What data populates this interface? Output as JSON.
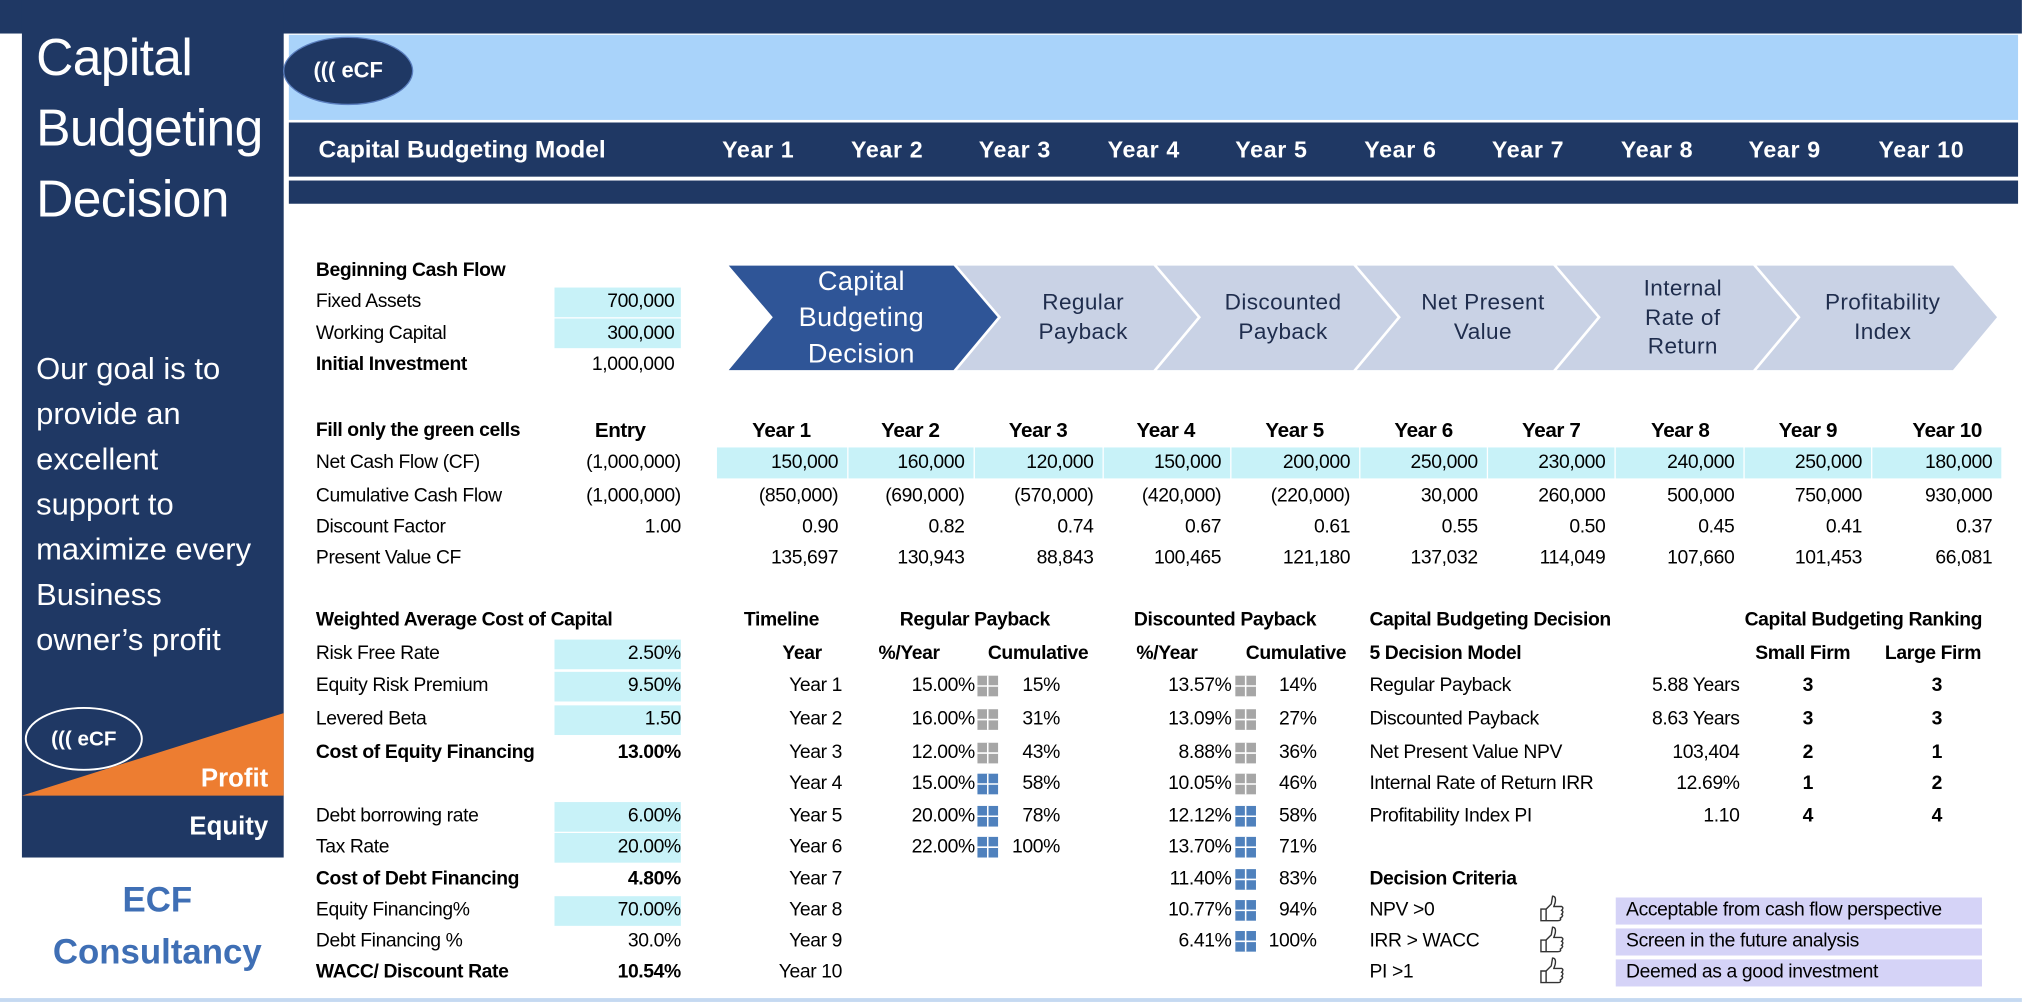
{
  "sidebar": {
    "title_lines": [
      "Capital",
      "Budgeting",
      "Decision"
    ],
    "goal_lines": [
      "Our goal is to",
      "provide an",
      "excellent",
      "support to",
      "maximize every",
      "Business",
      "owner’s profit"
    ],
    "logo": "((( eCF",
    "profit": "Profit",
    "equity": "Equity",
    "company_lines": [
      "ECF",
      "Consultancy"
    ]
  },
  "header": {
    "logo": "((( eCF",
    "model_title": "Capital Budgeting Model",
    "years": [
      "Year 1",
      "Year 2",
      "Year 3",
      "Year 4",
      "Year 5",
      "Year 6",
      "Year 7",
      "Year 8",
      "Year 9",
      "Year 10"
    ]
  },
  "beginning_cash_flow": {
    "title": "Beginning Cash Flow",
    "rows": [
      {
        "label": "Fixed Assets",
        "value": "700,000"
      },
      {
        "label": "Working Capital",
        "value": "300,000"
      },
      {
        "label": "Initial Investment",
        "value": "1,000,000"
      }
    ]
  },
  "process_steps": [
    {
      "lines": [
        "Capital",
        "Budgeting",
        "Decision"
      ]
    },
    {
      "lines": [
        "Regular",
        "Payback"
      ]
    },
    {
      "lines": [
        "Discounted",
        "Payback"
      ]
    },
    {
      "lines": [
        "Net Present",
        "Value"
      ]
    },
    {
      "lines": [
        "Internal",
        "Rate of",
        "Return"
      ]
    },
    {
      "lines": [
        "Profitability",
        "Index"
      ]
    }
  ],
  "cash_flow_table": {
    "instruction": "Fill only the green cells",
    "entry_header": "Entry",
    "years": [
      "Year 1",
      "Year 2",
      "Year 3",
      "Year 4",
      "Year 5",
      "Year 6",
      "Year 7",
      "Year 8",
      "Year 9",
      "Year 10"
    ],
    "rows": [
      {
        "label": "Net Cash Flow (CF)",
        "entry": "(1,000,000)",
        "values": [
          "150,000",
          "160,000",
          "120,000",
          "150,000",
          "200,000",
          "250,000",
          "230,000",
          "240,000",
          "250,000",
          "180,000"
        ]
      },
      {
        "label": "Cumulative Cash Flow",
        "entry": "(1,000,000)",
        "values": [
          "(850,000)",
          "(690,000)",
          "(570,000)",
          "(420,000)",
          "(220,000)",
          "30,000",
          "260,000",
          "500,000",
          "750,000",
          "930,000"
        ]
      },
      {
        "label": "Discount Factor",
        "entry": "1.00",
        "values": [
          "0.90",
          "0.82",
          "0.74",
          "0.67",
          "0.61",
          "0.55",
          "0.50",
          "0.45",
          "0.41",
          "0.37"
        ]
      },
      {
        "label": "Present Value CF",
        "values": [
          "135,697",
          "130,943",
          "88,843",
          "100,465",
          "121,180",
          "137,032",
          "114,049",
          "107,660",
          "101,453",
          "66,081"
        ]
      }
    ]
  },
  "wacc": {
    "title": "Weighted Average Cost of Capital",
    "rows": [
      {
        "label": "Risk Free Rate",
        "value": "2.50%"
      },
      {
        "label": "Equity Risk Premium",
        "value": "9.50%"
      },
      {
        "label": "Levered Beta",
        "value": "1.50"
      },
      {
        "label": "Cost of Equity Financing",
        "value": "13.00%"
      },
      {
        "label": "Debt borrowing rate",
        "value": "6.00%"
      },
      {
        "label": "Tax Rate",
        "value": "20.00%"
      },
      {
        "label": "Cost of Debt Financing",
        "value": "4.80%"
      },
      {
        "label": "Equity Financing%",
        "value": "70.00%"
      },
      {
        "label": "Debt Financing %",
        "value": "30.0%"
      },
      {
        "label": "WACC/ Discount Rate",
        "value": "10.54%"
      }
    ]
  },
  "timeline": {
    "title": "Timeline",
    "header": "Year",
    "years": [
      "Year 1",
      "Year 2",
      "Year 3",
      "Year 4",
      "Year 5",
      "Year 6",
      "Year 7",
      "Year 8",
      "Year 9",
      "Year 10"
    ]
  },
  "regular_payback": {
    "title": "Regular Payback",
    "columns": [
      "%/Year",
      "Cumulative"
    ],
    "rows": [
      [
        "15.00%",
        "15%"
      ],
      [
        "16.00%",
        "31%"
      ],
      [
        "12.00%",
        "43%"
      ],
      [
        "15.00%",
        "58%"
      ],
      [
        "20.00%",
        "78%"
      ],
      [
        "22.00%",
        "100%"
      ]
    ]
  },
  "discounted_payback": {
    "title": "Discounted Payback",
    "columns": [
      "%/Year",
      "Cumulative"
    ],
    "rows": [
      [
        "13.57%",
        "14%"
      ],
      [
        "13.09%",
        "27%"
      ],
      [
        "8.88%",
        "36%"
      ],
      [
        "10.05%",
        "46%"
      ],
      [
        "12.12%",
        "58%"
      ],
      [
        "13.70%",
        "71%"
      ],
      [
        "11.40%",
        "83%"
      ],
      [
        "10.77%",
        "94%"
      ],
      [
        "6.41%",
        "100%"
      ]
    ]
  },
  "decision": {
    "title": "Capital Budgeting Decision",
    "subtitle": "5 Decision Model",
    "rows": [
      {
        "label": "Regular Payback",
        "value": "5.88 Years",
        "small_firm": "3",
        "large_firm": "3"
      },
      {
        "label": "Discounted Payback",
        "value": "8.63 Years",
        "small_firm": "3",
        "large_firm": "3"
      },
      {
        "label": "Net Present Value NPV",
        "value": "103,404",
        "small_firm": "2",
        "large_firm": "1"
      },
      {
        "label": "Internal Rate of Return IRR",
        "value": "12.69%",
        "small_firm": "1",
        "large_firm": "2"
      },
      {
        "label": "Profitability Index PI",
        "value": "1.10",
        "small_firm": "4",
        "large_firm": "4"
      }
    ]
  },
  "ranking": {
    "title": "Capital Budgeting Ranking",
    "columns": [
      "Small Firm",
      "Large Firm"
    ]
  },
  "criteria": {
    "title": "Decision Criteria",
    "rows": [
      {
        "label": "NPV >0",
        "result": "Acceptable from cash flow perspective"
      },
      {
        "label": "IRR > WACC",
        "result": "Screen in the future analysis"
      },
      {
        "label": "PI >1",
        "result": "Deemed as a good investment"
      }
    ]
  }
}
